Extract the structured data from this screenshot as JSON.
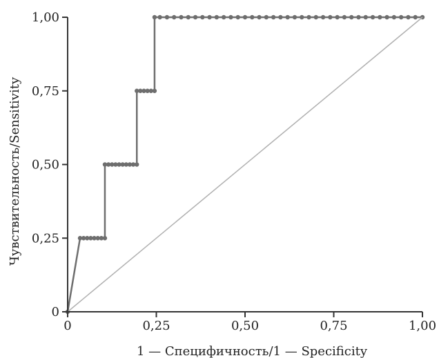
{
  "chart_data": {
    "type": "line",
    "title": "",
    "xlabel": "1 — Специфичность/1 — Specificity",
    "ylabel": "Чувствительность/Sensitivity",
    "xlim": [
      0,
      1
    ],
    "ylim": [
      0,
      1
    ],
    "grid": false,
    "x_ticks": [
      0,
      0.25,
      0.5,
      0.75,
      1.0
    ],
    "y_ticks": [
      0,
      0.25,
      0.5,
      0.75,
      1.0
    ],
    "x_tick_labels": [
      "0",
      "0,25",
      "0,50",
      "0,75",
      "1,00"
    ],
    "y_tick_labels": [
      "0",
      "0,25",
      "0,50",
      "0,75",
      "1,00"
    ],
    "series": [
      {
        "color": "#6e6e6e",
        "marker": "circle",
        "x": [
          0,
          0.035,
          0.045,
          0.055,
          0.065,
          0.075,
          0.085,
          0.095,
          0.105,
          0.105,
          0.115,
          0.125,
          0.135,
          0.145,
          0.155,
          0.165,
          0.175,
          0.185,
          0.195,
          0.195,
          0.205,
          0.215,
          0.225,
          0.235,
          0.245,
          0.245,
          0.26,
          0.28,
          0.3,
          0.32,
          0.34,
          0.36,
          0.38,
          0.4,
          0.42,
          0.44,
          0.46,
          0.48,
          0.5,
          0.52,
          0.54,
          0.56,
          0.58,
          0.6,
          0.62,
          0.64,
          0.66,
          0.68,
          0.7,
          0.72,
          0.74,
          0.76,
          0.78,
          0.8,
          0.82,
          0.84,
          0.86,
          0.88,
          0.9,
          0.92,
          0.94,
          0.96,
          0.98,
          1.0
        ],
        "y": [
          0,
          0.25,
          0.25,
          0.25,
          0.25,
          0.25,
          0.25,
          0.25,
          0.25,
          0.5,
          0.5,
          0.5,
          0.5,
          0.5,
          0.5,
          0.5,
          0.5,
          0.5,
          0.5,
          0.75,
          0.75,
          0.75,
          0.75,
          0.75,
          0.75,
          1.0,
          1.0,
          1.0,
          1.0,
          1.0,
          1.0,
          1.0,
          1.0,
          1.0,
          1.0,
          1.0,
          1.0,
          1.0,
          1.0,
          1.0,
          1.0,
          1.0,
          1.0,
          1.0,
          1.0,
          1.0,
          1.0,
          1.0,
          1.0,
          1.0,
          1.0,
          1.0,
          1.0,
          1.0,
          1.0,
          1.0,
          1.0,
          1.0,
          1.0,
          1.0,
          1.0,
          1.0,
          1.0,
          1.0
        ]
      },
      {
        "color": "#b0b0b0",
        "marker": "none",
        "x": [
          0,
          1
        ],
        "y": [
          0,
          1
        ]
      }
    ]
  }
}
